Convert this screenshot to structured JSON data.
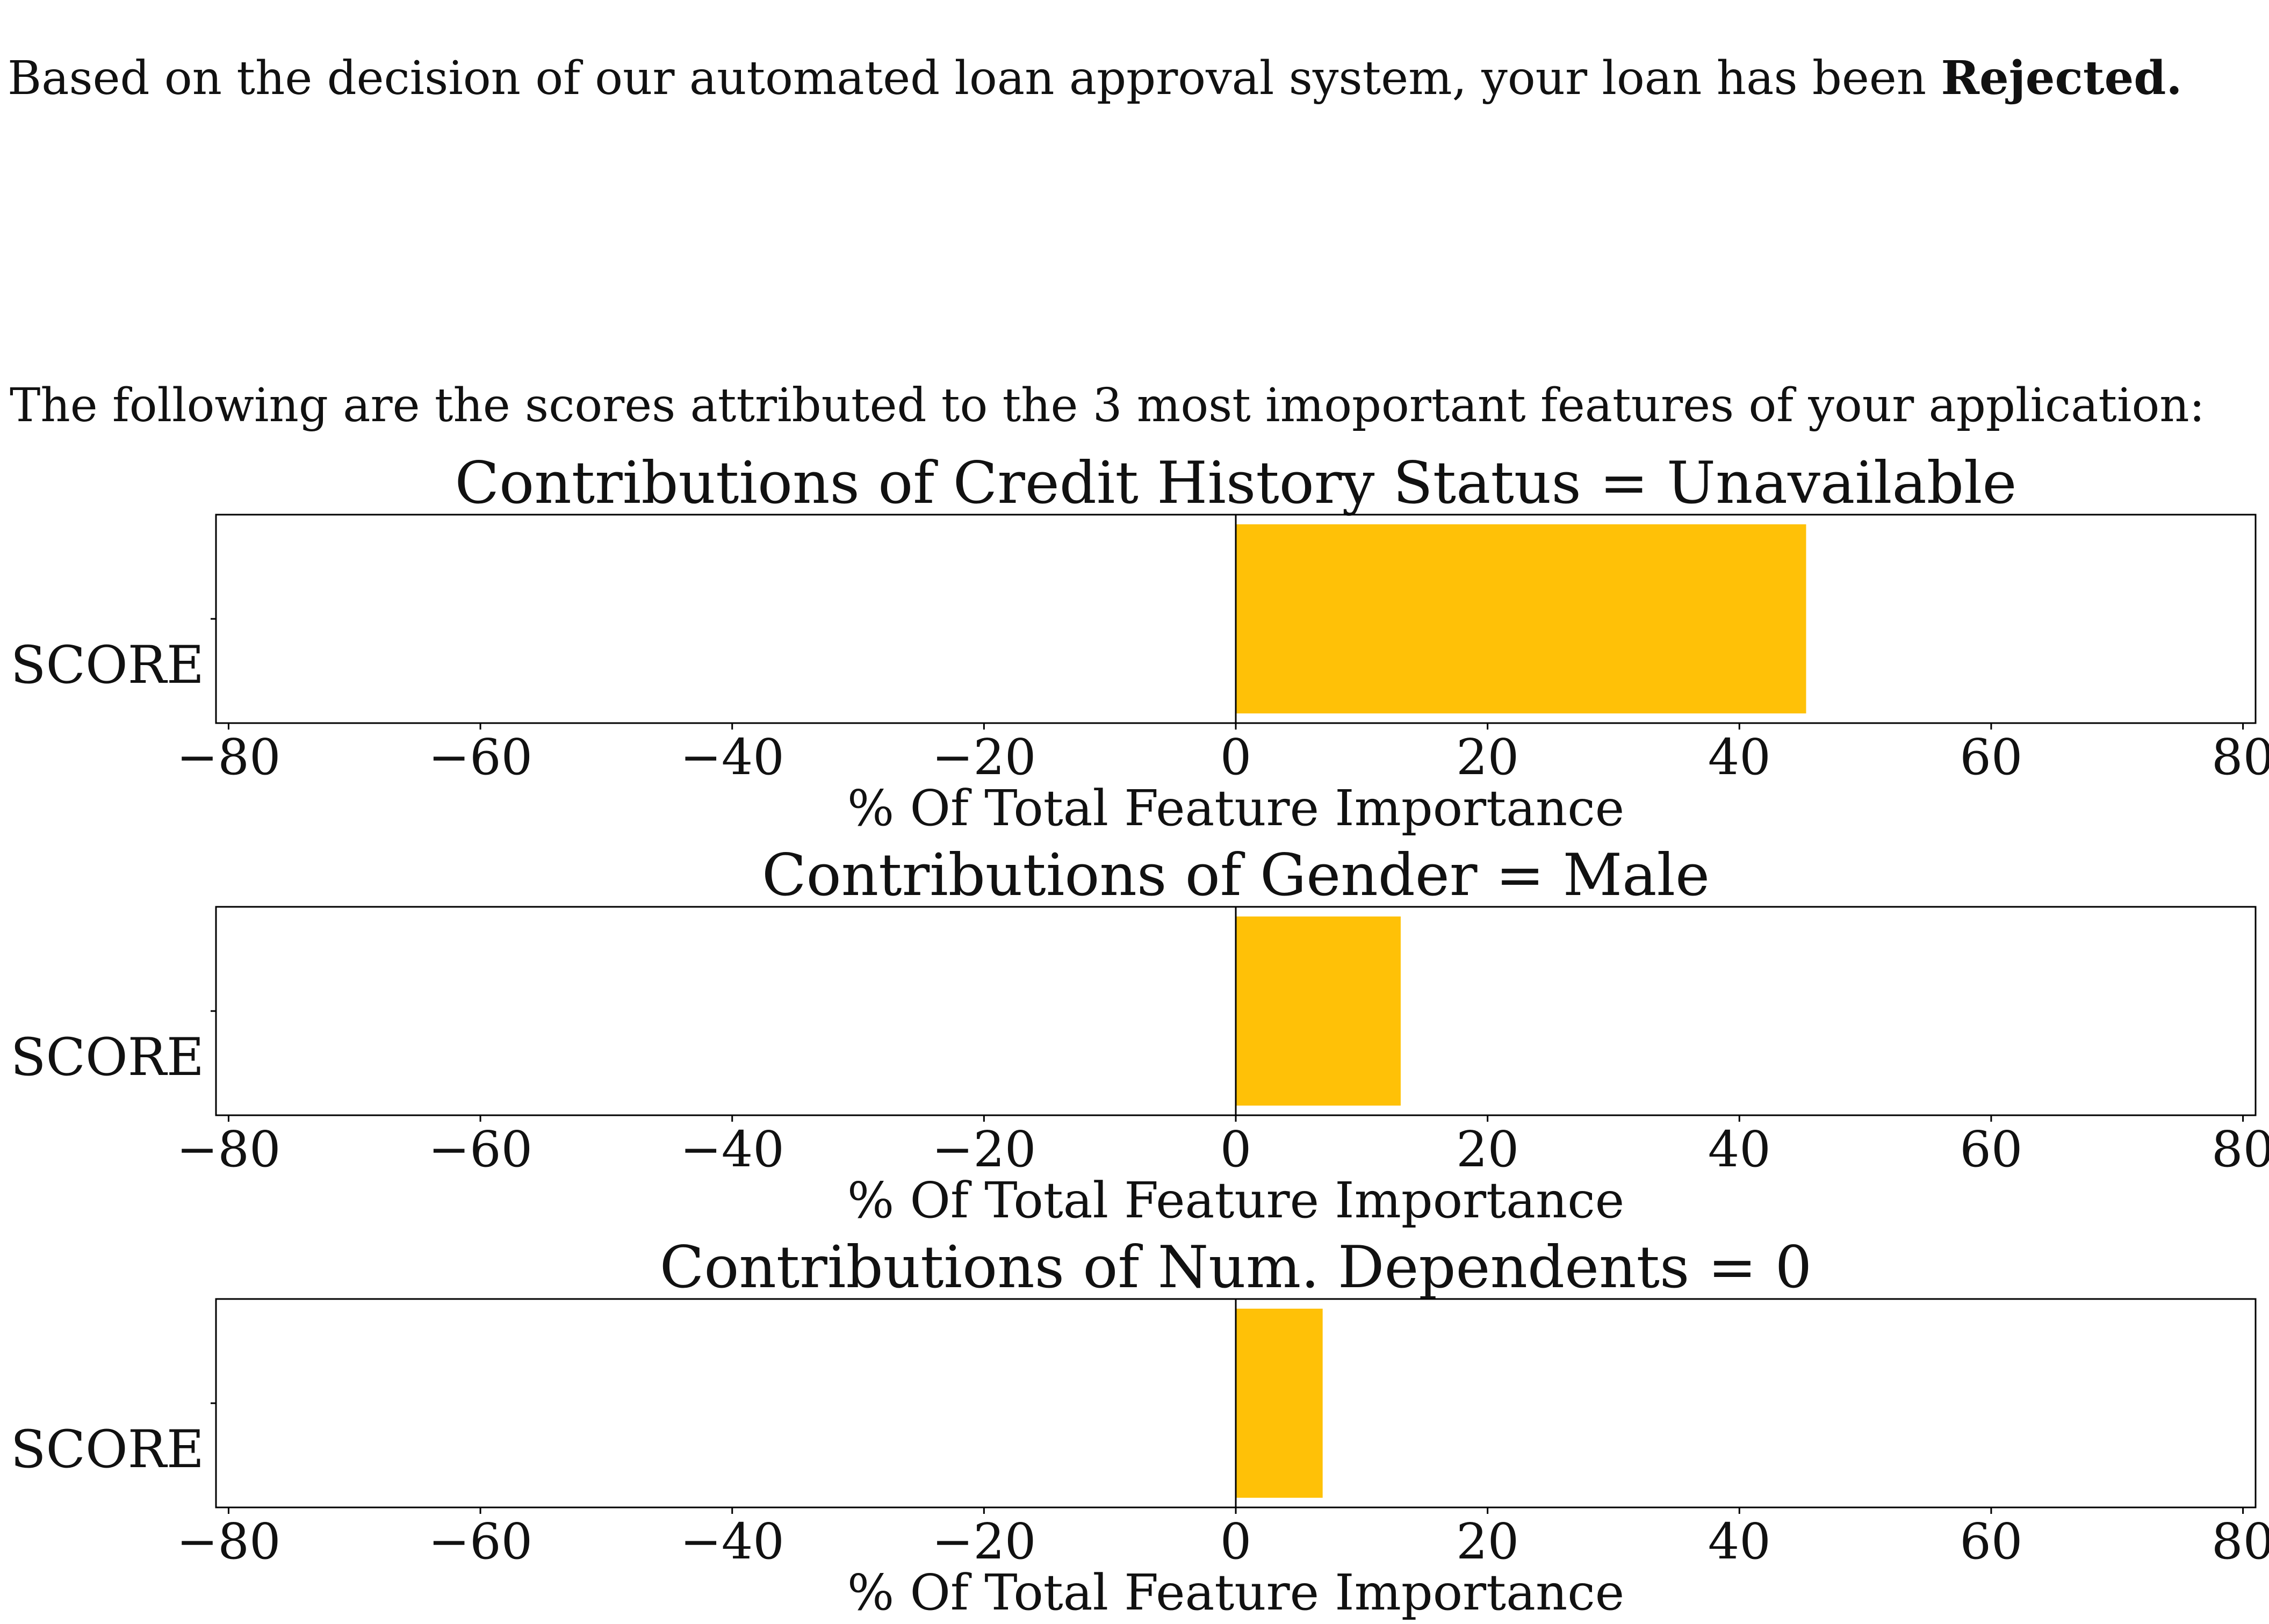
{
  "decision": {
    "prefix": "Based on the decision of our automated loan approval system, your loan has been ",
    "outcome": "Rejected."
  },
  "intro": "The following are the scores attributed to the 3 most imoportant features of your application:",
  "colors": {
    "bar": "#FFC107",
    "axis": "#000000"
  },
  "chart_data": [
    {
      "type": "bar",
      "orientation": "horizontal",
      "title": "Contributions of Credit History Status = Unavailable",
      "categories": [
        "SCORE"
      ],
      "values": [
        45.3
      ],
      "xlabel": "% Of Total Feature Importance",
      "xlim": [
        -81,
        81
      ],
      "xticks": [
        -80,
        -60,
        -40,
        -20,
        0,
        20,
        40,
        60,
        80
      ],
      "xtick_labels": [
        "−80",
        "−60",
        "−40",
        "−20",
        "0",
        "20",
        "40",
        "60",
        "80"
      ],
      "grid": false
    },
    {
      "type": "bar",
      "orientation": "horizontal",
      "title": "Contributions of Gender = Male",
      "categories": [
        "SCORE"
      ],
      "values": [
        13.1
      ],
      "xlabel": "% Of Total Feature Importance",
      "xlim": [
        -81,
        81
      ],
      "xticks": [
        -80,
        -60,
        -40,
        -20,
        0,
        20,
        40,
        60,
        80
      ],
      "xtick_labels": [
        "−80",
        "−60",
        "−40",
        "−20",
        "0",
        "20",
        "40",
        "60",
        "80"
      ],
      "grid": false
    },
    {
      "type": "bar",
      "orientation": "horizontal",
      "title": "Contributions of Num. Dependents = 0",
      "categories": [
        "SCORE"
      ],
      "values": [
        6.9
      ],
      "xlabel": "% Of Total Feature Importance",
      "xlim": [
        -81,
        81
      ],
      "xticks": [
        -80,
        -60,
        -40,
        -20,
        0,
        20,
        40,
        60,
        80
      ],
      "xtick_labels": [
        "−80",
        "−60",
        "−40",
        "−20",
        "0",
        "20",
        "40",
        "60",
        "80"
      ],
      "grid": false
    }
  ]
}
